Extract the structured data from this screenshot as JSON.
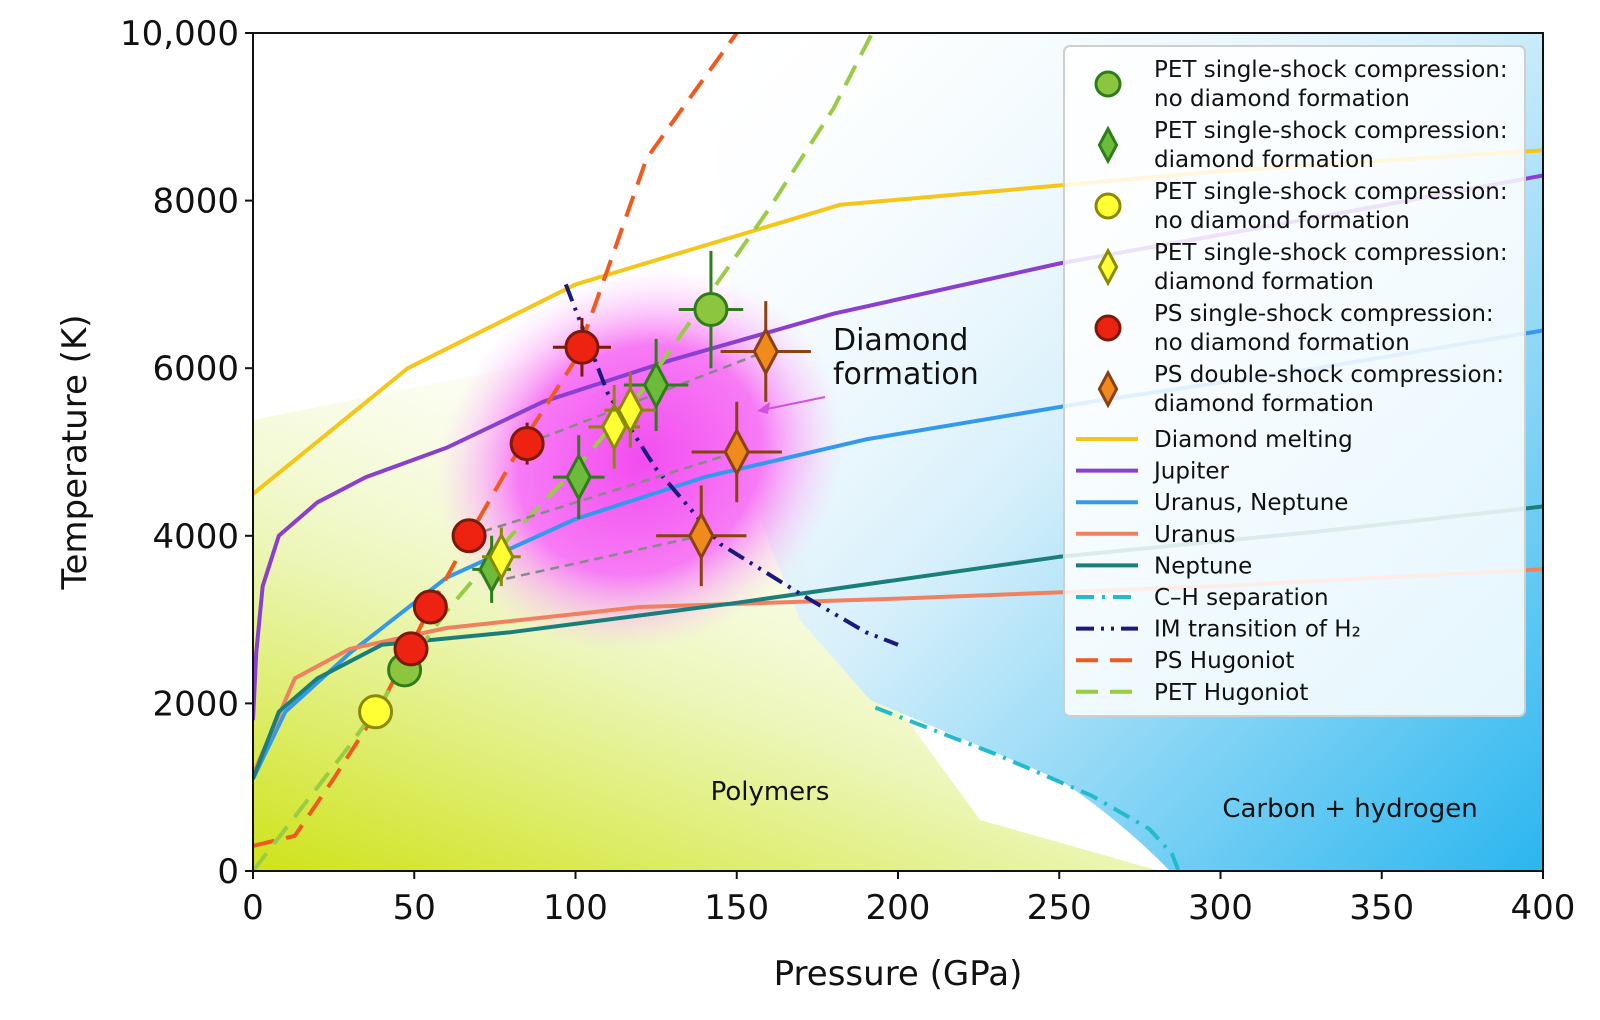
{
  "chart_data": {
    "type": "scatter",
    "xlabel": "Pressure (GPa)",
    "ylabel": "Temperature (K)",
    "xlim": [
      0,
      400
    ],
    "ylim": [
      0,
      10000
    ],
    "xticks": [
      0,
      50,
      100,
      150,
      200,
      250,
      300,
      350,
      400
    ],
    "yticks": [
      0,
      2000,
      4000,
      6000,
      8000,
      10000
    ],
    "xtick_labels": [
      "0",
      "50",
      "100",
      "150",
      "200",
      "250",
      "300",
      "350",
      "400"
    ],
    "ytick_labels": [
      "0",
      "2000",
      "4000",
      "6000",
      "8000",
      "10,000"
    ],
    "grid": false,
    "legend_position": "top-right",
    "annotations": {
      "diamond_formation": {
        "line1": "Diamond",
        "line2": "formation",
        "arrow_to": [
          157,
          5650
        ]
      },
      "polymers": "Polymers",
      "carbon_hydrogen": "Carbon + hydrogen"
    },
    "markers": [
      {
        "legend": "PET single-shock compression:",
        "legend2": "no diamond formation",
        "shape": "circle",
        "color": "#8cc63f",
        "edge": "#2e7d1a",
        "points": [
          {
            "x": 47,
            "y": 2400,
            "xerr": 0,
            "yerr": 0
          },
          {
            "x": 142,
            "y": 6700,
            "xerr": 10,
            "yerr": 700
          }
        ]
      },
      {
        "legend": "PET single-shock compression:",
        "legend2": "diamond formation",
        "shape": "diamond",
        "color": "#6dbb3a",
        "edge": "#2e7d1a",
        "points": [
          {
            "x": 74,
            "y": 3600,
            "xerr": 6,
            "yerr": 400
          },
          {
            "x": 101,
            "y": 4700,
            "xerr": 8,
            "yerr": 500
          },
          {
            "x": 125,
            "y": 5800,
            "xerr": 10,
            "yerr": 550
          }
        ]
      },
      {
        "legend": "PET single-shock compression:",
        "legend2": "no diamond formation",
        "shape": "circle",
        "color": "#ffff33",
        "edge": "#8a8a00",
        "points": [
          {
            "x": 38,
            "y": 1900,
            "xerr": 0,
            "yerr": 0
          }
        ]
      },
      {
        "legend": "PET single-shock compression:",
        "legend2": "diamond formation",
        "shape": "diamond",
        "color": "#ffff33",
        "edge": "#8a8a00",
        "points": [
          {
            "x": 77,
            "y": 3750,
            "xerr": 6,
            "yerr": 350
          },
          {
            "x": 112,
            "y": 5300,
            "xerr": 8,
            "yerr": 500
          },
          {
            "x": 117,
            "y": 5500,
            "xerr": 8,
            "yerr": 450
          }
        ]
      },
      {
        "legend": "PS single-shock compression:",
        "legend2": "no diamond formation",
        "shape": "circle",
        "color": "#ee2211",
        "edge": "#7a1a0a",
        "points": [
          {
            "x": 49,
            "y": 2650,
            "xerr": 0,
            "yerr": 0
          },
          {
            "x": 55,
            "y": 3150,
            "xerr": 0,
            "yerr": 0
          },
          {
            "x": 67,
            "y": 4000,
            "xerr": 4,
            "yerr": 200
          },
          {
            "x": 85,
            "y": 5100,
            "xerr": 5,
            "yerr": 250
          },
          {
            "x": 102,
            "y": 6250,
            "xerr": 9,
            "yerr": 350
          }
        ]
      },
      {
        "legend": "PS double-shock compression:",
        "legend2": "diamond formation",
        "shape": "diamond",
        "color": "#f08a1c",
        "edge": "#8a4010",
        "points": [
          {
            "x": 139,
            "y": 4000,
            "xerr": 14,
            "yerr": 600
          },
          {
            "x": 150,
            "y": 5000,
            "xerr": 14,
            "yerr": 600
          },
          {
            "x": 159,
            "y": 6200,
            "xerr": 14,
            "yerr": 600
          }
        ]
      }
    ],
    "dashed_connectors": [
      {
        "from": [
          74,
          3450
        ],
        "to": [
          139,
          4000
        ]
      },
      {
        "from": [
          67,
          4000
        ],
        "to": [
          150,
          5000
        ]
      },
      {
        "from": [
          85,
          5100
        ],
        "to": [
          159,
          6200
        ]
      }
    ],
    "lines": [
      {
        "name": "Diamond melting",
        "color": "#f5c518",
        "style": "solid",
        "x": [
          0,
          48,
          100,
          182,
          300,
          400
        ],
        "y": [
          4500,
          6000,
          7000,
          7950,
          8350,
          8600
        ]
      },
      {
        "name": "Jupiter",
        "color": "#8a3fd1",
        "style": "solid",
        "x": [
          0,
          1,
          3,
          8,
          20,
          35,
          60,
          90,
          130,
          180,
          250,
          330,
          400
        ],
        "y": [
          1800,
          2600,
          3400,
          4000,
          4400,
          4700,
          5050,
          5600,
          6100,
          6650,
          7250,
          7800,
          8300
        ]
      },
      {
        "name": "Uranus, Neptune",
        "color": "#3399ee",
        "style": "solid",
        "x": [
          0,
          10,
          30,
          60,
          100,
          140,
          190,
          260,
          330,
          400
        ],
        "y": [
          1100,
          1900,
          2600,
          3500,
          4200,
          4700,
          5150,
          5600,
          6000,
          6450
        ]
      },
      {
        "name": "Uranus",
        "color": "#f08060",
        "style": "solid",
        "x": [
          0,
          13,
          30,
          60,
          120,
          200,
          300,
          400
        ],
        "y": [
          1150,
          2300,
          2650,
          2900,
          3150,
          3250,
          3400,
          3600
        ]
      },
      {
        "name": "Neptune",
        "color": "#1a7f7a",
        "style": "solid",
        "x": [
          0,
          8,
          20,
          40,
          80,
          150,
          250,
          330,
          400
        ],
        "y": [
          1100,
          1900,
          2300,
          2700,
          2850,
          3200,
          3750,
          4050,
          4350
        ]
      },
      {
        "name": "C–H separation",
        "color": "#22bbcc",
        "style": "dashdot",
        "x": [
          193,
          230,
          260,
          278,
          285,
          287
        ],
        "y": [
          1950,
          1400,
          900,
          500,
          200,
          0
        ]
      },
      {
        "name": "IM transition of H₂",
        "color": "#1a1a7a",
        "style": "dashdotdot",
        "x": [
          97,
          110,
          125,
          145,
          170,
          190,
          200
        ],
        "y": [
          7000,
          5700,
          4800,
          3900,
          3300,
          2850,
          2700
        ]
      },
      {
        "name": "PS Hugoniot",
        "color": "#f05a1e",
        "style": "dashed",
        "x": [
          0,
          13,
          25,
          40,
          55,
          70,
          85,
          100,
          112,
          122,
          135,
          150
        ],
        "y": [
          300,
          420,
          1100,
          2000,
          3150,
          4200,
          5200,
          6100,
          7400,
          8500,
          9200,
          10000
        ]
      },
      {
        "name": "PET Hugoniot",
        "color": "#99cc44",
        "style": "dashed",
        "x": [
          0,
          30,
          60,
          80,
          100,
          120,
          140,
          160,
          180,
          192
        ],
        "y": [
          0,
          1500,
          3100,
          4000,
          4800,
          5700,
          6800,
          7900,
          9100,
          10000
        ]
      }
    ],
    "legend": {
      "entries": [
        {
          "line1": "PET single-shock compression:",
          "line2": "no diamond formation"
        },
        {
          "line1": "PET single-shock compression:",
          "line2": "diamond formation"
        },
        {
          "line1": "PET single-shock compression:",
          "line2": "no diamond formation"
        },
        {
          "line1": "PET single-shock compression:",
          "line2": "diamond formation"
        },
        {
          "line1": "PS single-shock compression:",
          "line2": "no diamond formation"
        },
        {
          "line1": "PS double-shock compression:",
          "line2": "diamond formation"
        },
        {
          "line1": "Diamond melting"
        },
        {
          "line1": "Jupiter"
        },
        {
          "line1": "Uranus, Neptune"
        },
        {
          "line1": "Uranus"
        },
        {
          "line1": "Neptune"
        },
        {
          "line1": "C–H separation"
        },
        {
          "line1": "IM transition of H₂"
        },
        {
          "line1": "PS Hugoniot"
        },
        {
          "line1": "PET Hugoniot"
        }
      ]
    }
  }
}
